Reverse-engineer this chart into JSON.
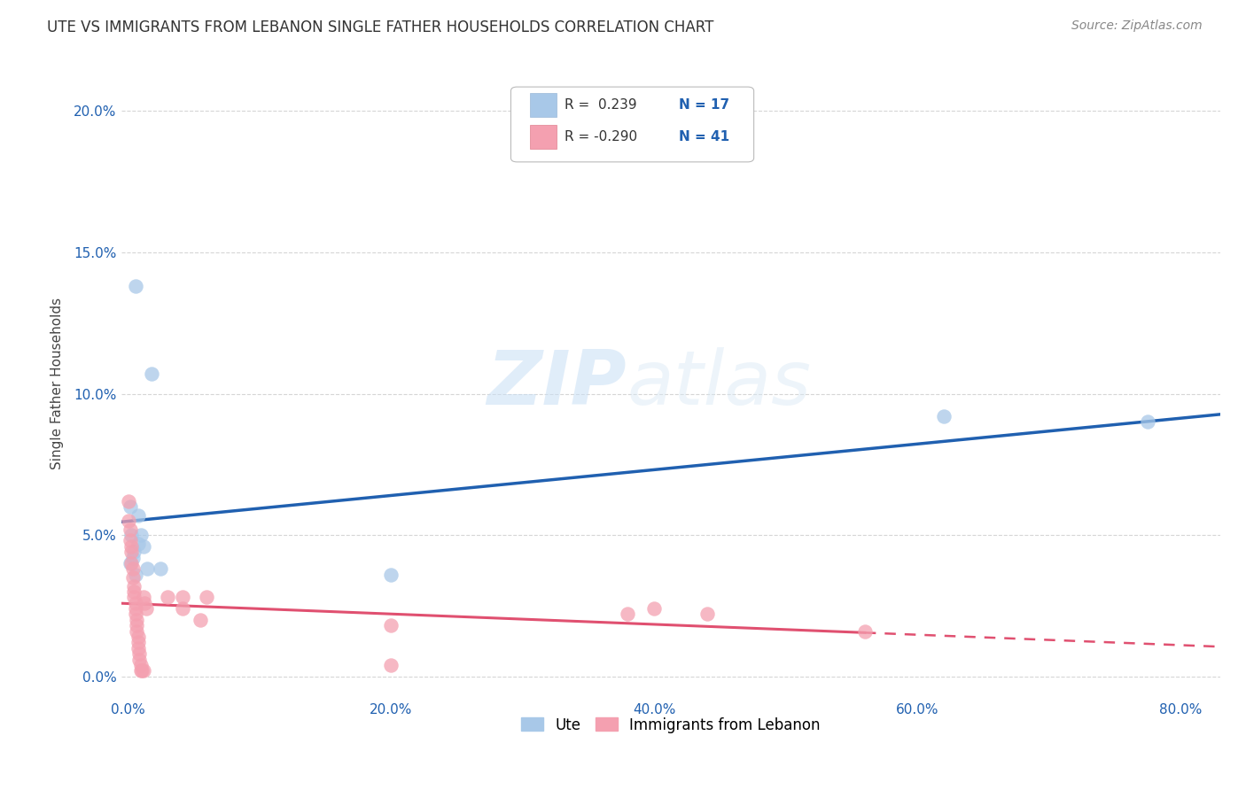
{
  "title": "UTE VS IMMIGRANTS FROM LEBANON SINGLE FATHER HOUSEHOLDS CORRELATION CHART",
  "source": "Source: ZipAtlas.com",
  "ylabel": "Single Father Households",
  "xlabel_ticks": [
    "0.0%",
    "20.0%",
    "40.0%",
    "60.0%",
    "80.0%"
  ],
  "xlabel_vals": [
    0.0,
    0.2,
    0.4,
    0.6,
    0.8
  ],
  "ylabel_ticks": [
    "0.0%",
    "5.0%",
    "10.0%",
    "15.0%",
    "20.0%"
  ],
  "ylabel_vals": [
    0.0,
    0.05,
    0.1,
    0.15,
    0.2
  ],
  "xlim": [
    -0.005,
    0.83
  ],
  "ylim": [
    -0.008,
    0.215
  ],
  "legend_blue_r": "R =  0.239",
  "legend_blue_n": "N = 17",
  "legend_pink_r": "R = -0.290",
  "legend_pink_n": "N = 41",
  "legend_label_blue": "Ute",
  "legend_label_pink": "Immigrants from Lebanon",
  "blue_color": "#a8c8e8",
  "pink_color": "#f4a0b0",
  "blue_line_color": "#2060b0",
  "pink_line_color": "#e05070",
  "r_value_color": "#2060b0",
  "n_value_color": "#2060b0",
  "watermark_zip": "ZIP",
  "watermark_atlas": "atlas",
  "ute_points": [
    [
      0.006,
      0.138
    ],
    [
      0.018,
      0.107
    ],
    [
      0.002,
      0.06
    ],
    [
      0.008,
      0.057
    ],
    [
      0.003,
      0.05
    ],
    [
      0.01,
      0.05
    ],
    [
      0.008,
      0.047
    ],
    [
      0.012,
      0.046
    ],
    [
      0.005,
      0.044
    ],
    [
      0.004,
      0.042
    ],
    [
      0.002,
      0.04
    ],
    [
      0.015,
      0.038
    ],
    [
      0.025,
      0.038
    ],
    [
      0.006,
      0.036
    ],
    [
      0.2,
      0.036
    ],
    [
      0.62,
      0.092
    ],
    [
      0.775,
      0.09
    ]
  ],
  "lebanon_points": [
    [
      0.001,
      0.062
    ],
    [
      0.001,
      0.055
    ],
    [
      0.002,
      0.052
    ],
    [
      0.002,
      0.048
    ],
    [
      0.003,
      0.046
    ],
    [
      0.003,
      0.044
    ],
    [
      0.003,
      0.04
    ],
    [
      0.004,
      0.038
    ],
    [
      0.004,
      0.035
    ],
    [
      0.005,
      0.032
    ],
    [
      0.005,
      0.03
    ],
    [
      0.005,
      0.028
    ],
    [
      0.006,
      0.026
    ],
    [
      0.006,
      0.024
    ],
    [
      0.006,
      0.022
    ],
    [
      0.007,
      0.02
    ],
    [
      0.007,
      0.018
    ],
    [
      0.007,
      0.016
    ],
    [
      0.008,
      0.014
    ],
    [
      0.008,
      0.012
    ],
    [
      0.008,
      0.01
    ],
    [
      0.009,
      0.008
    ],
    [
      0.009,
      0.006
    ],
    [
      0.01,
      0.004
    ],
    [
      0.01,
      0.002
    ],
    [
      0.011,
      0.002
    ],
    [
      0.012,
      0.002
    ],
    [
      0.012,
      0.028
    ],
    [
      0.013,
      0.026
    ],
    [
      0.014,
      0.024
    ],
    [
      0.03,
      0.028
    ],
    [
      0.042,
      0.028
    ],
    [
      0.042,
      0.024
    ],
    [
      0.055,
      0.02
    ],
    [
      0.06,
      0.028
    ],
    [
      0.2,
      0.018
    ],
    [
      0.2,
      0.004
    ],
    [
      0.38,
      0.022
    ],
    [
      0.4,
      0.024
    ],
    [
      0.44,
      0.022
    ],
    [
      0.56,
      0.016
    ]
  ]
}
